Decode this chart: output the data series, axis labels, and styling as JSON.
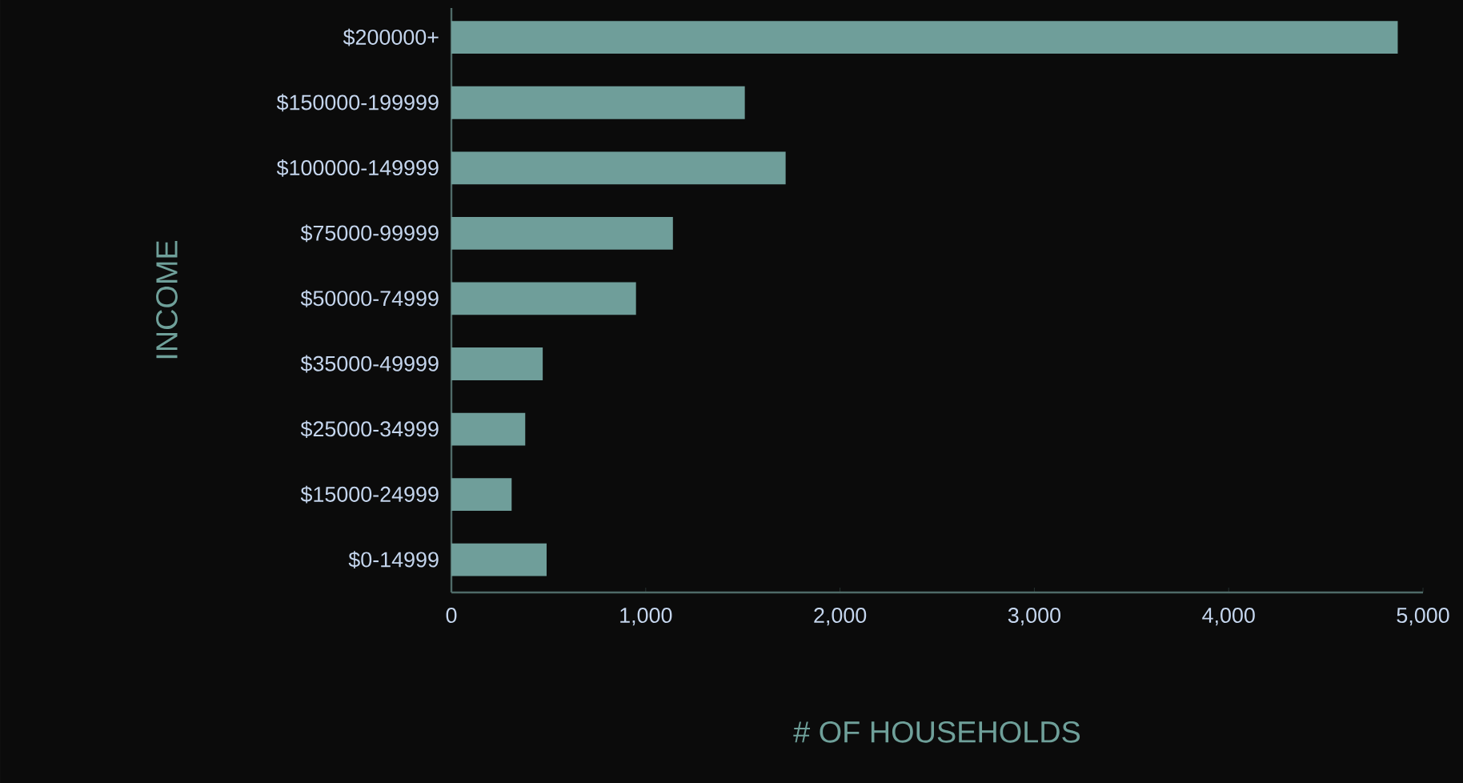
{
  "chart_data": {
    "type": "bar",
    "orientation": "horizontal",
    "xlabel": "# OF HOUSEHOLDS",
    "ylabel": "INCOME",
    "categories": [
      "$200000+",
      "$150000-199999",
      "$100000-149999",
      "$75000-99999",
      "$50000-74999",
      "$35000-49999",
      "$25000-34999",
      "$15000-24999",
      "$0-14999"
    ],
    "values": [
      4870,
      1510,
      1720,
      1140,
      950,
      470,
      380,
      310,
      490
    ],
    "color": "#6f9e9a",
    "xlim": [
      0,
      5000
    ],
    "xticks": [
      0,
      {
        "value": 1000,
        "label": "1,000"
      },
      {
        "value": 2000,
        "label": "2,000"
      },
      {
        "value": 3000,
        "label": "3,000"
      },
      {
        "value": 4000,
        "label": "4,000"
      },
      {
        "value": 5000,
        "label": "5,000"
      }
    ],
    "grid": false
  }
}
